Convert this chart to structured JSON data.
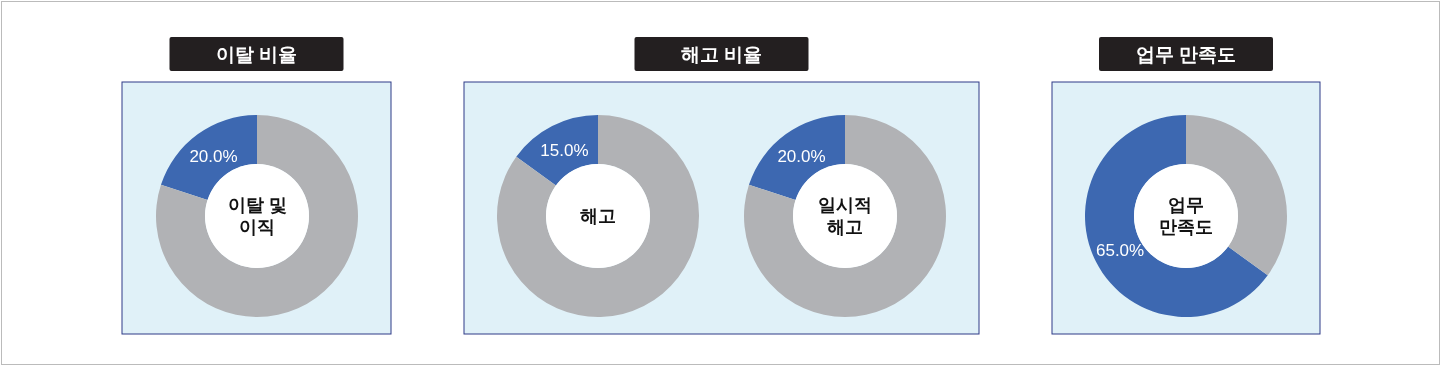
{
  "chart_data": [
    {
      "type": "donut",
      "title": "이탈 비율",
      "categories": [
        null,
        null
      ],
      "values": [
        20,
        80
      ],
      "colors": [
        "#3d68b1",
        "#b1b2b5"
      ],
      "value_labels": [
        "20.0%",
        null
      ],
      "annotations": [
        "이탈 및",
        "이직"
      ]
    },
    {
      "type": "donut",
      "title": "해고 비율",
      "categories": [
        null,
        null
      ],
      "values": [
        15,
        85
      ],
      "colors": [
        "#3d68b1",
        "#b1b2b5"
      ],
      "value_labels": [
        "15.0%",
        null
      ],
      "annotations": [
        "해고"
      ]
    },
    {
      "type": "donut",
      "categories": [
        null,
        null
      ],
      "values": [
        20,
        80
      ],
      "colors": [
        "#3d68b1",
        "#b1b2b5"
      ],
      "value_labels": [
        "20.0%",
        null
      ],
      "annotations": [
        "일시적",
        "해고"
      ]
    },
    {
      "type": "donut",
      "title": "업무 만족도",
      "categories": [
        null,
        null
      ],
      "values": [
        65,
        35
      ],
      "colors": [
        "#3d68b1",
        "#b1b2b5"
      ],
      "value_labels": [
        "65.0%",
        null
      ],
      "annotations": [
        "업무",
        "만족도"
      ]
    }
  ]
}
